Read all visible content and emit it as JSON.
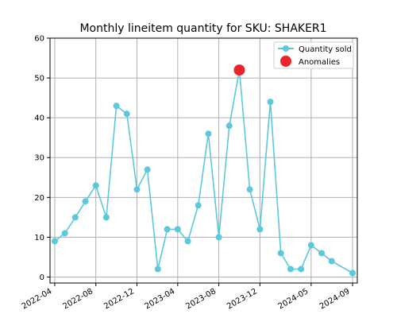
{
  "chart_data": {
    "type": "line",
    "title": "Monthly lineitem quantity for SKU: SHAKER1",
    "xlabel": "",
    "ylabel": "",
    "ylim": [
      -1.5,
      60
    ],
    "xlim": [
      "2022-03-18",
      "2024-09-15"
    ],
    "yticks": [
      0,
      10,
      20,
      30,
      40,
      50,
      60
    ],
    "xticks": [
      {
        "date": "2022-04-01",
        "label": "2022-04"
      },
      {
        "date": "2022-08-01",
        "label": "2022-08"
      },
      {
        "date": "2022-12-01",
        "label": "2022-12"
      },
      {
        "date": "2023-04-01",
        "label": "2023-04"
      },
      {
        "date": "2023-08-01",
        "label": "2023-08"
      },
      {
        "date": "2023-12-01",
        "label": "2023-12"
      },
      {
        "date": "2024-05-01",
        "label": "2024-05"
      },
      {
        "date": "2024-09-01",
        "label": "2024-09"
      }
    ],
    "grid": true,
    "legend_position": "top-right",
    "series": [
      {
        "name": "Quantity sold",
        "color": "#5bc8dc",
        "points": [
          {
            "x": "2022-04-01",
            "y": 9
          },
          {
            "x": "2022-05-01",
            "y": 11
          },
          {
            "x": "2022-06-01",
            "y": 15
          },
          {
            "x": "2022-07-01",
            "y": 19
          },
          {
            "x": "2022-08-01",
            "y": 23
          },
          {
            "x": "2022-09-01",
            "y": 15
          },
          {
            "x": "2022-10-01",
            "y": 43
          },
          {
            "x": "2022-11-01",
            "y": 41
          },
          {
            "x": "2022-12-01",
            "y": 22
          },
          {
            "x": "2023-01-01",
            "y": 27
          },
          {
            "x": "2023-02-01",
            "y": 2
          },
          {
            "x": "2023-03-01",
            "y": 12
          },
          {
            "x": "2023-04-01",
            "y": 12
          },
          {
            "x": "2023-05-01",
            "y": 9
          },
          {
            "x": "2023-06-01",
            "y": 18
          },
          {
            "x": "2023-07-01",
            "y": 36
          },
          {
            "x": "2023-08-01",
            "y": 10
          },
          {
            "x": "2023-09-01",
            "y": 38
          },
          {
            "x": "2023-10-01",
            "y": 52
          },
          {
            "x": "2023-11-01",
            "y": 22
          },
          {
            "x": "2023-12-01",
            "y": 12
          },
          {
            "x": "2024-01-01",
            "y": 44
          },
          {
            "x": "2024-02-01",
            "y": 6
          },
          {
            "x": "2024-03-01",
            "y": 2
          },
          {
            "x": "2024-04-01",
            "y": 2
          },
          {
            "x": "2024-05-01",
            "y": 8
          },
          {
            "x": "2024-06-01",
            "y": 6
          },
          {
            "x": "2024-07-01",
            "y": 4
          },
          {
            "x": "2024-09-01",
            "y": 1
          }
        ]
      },
      {
        "name": "Anomalies",
        "color": "#e8262a",
        "points": [
          {
            "x": "2023-10-01",
            "y": 52
          }
        ]
      }
    ]
  }
}
